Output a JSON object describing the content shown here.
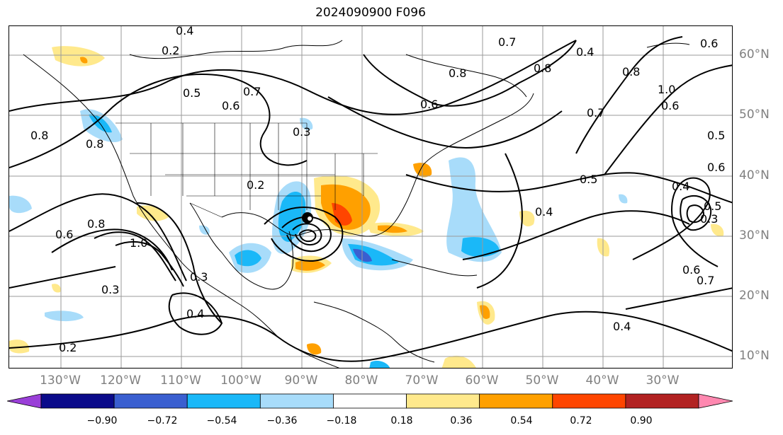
{
  "title": "2024090900 F096",
  "lon_labels": [
    "130°W",
    "120°W",
    "110°W",
    "100°W",
    "90°W",
    "80°W",
    "70°W",
    "60°W",
    "50°W",
    "40°W",
    "30°W"
  ],
  "lat_labels": [
    "60°N",
    "50°N",
    "40°N",
    "30°N",
    "20°N",
    "10°N"
  ],
  "colorbar": {
    "ticks": [
      "−0.90",
      "−0.72",
      "−0.54",
      "−0.36",
      "−0.18",
      "0.18",
      "0.36",
      "0.54",
      "0.72",
      "0.90"
    ],
    "colors": [
      "#9a3fd8",
      "#0a0a8a",
      "#3a5fd0",
      "#1ab8f8",
      "#a8dcfa",
      "#ffffff",
      "#ffe98c",
      "#ffa000",
      "#ff4500",
      "#b22222",
      "#ff88b0"
    ]
  },
  "contour_labels": [
    "0.2",
    "0.5",
    "0.6",
    "0.7",
    "0.7",
    "0.4",
    "0.8",
    "0.6",
    "0.8",
    "1.0",
    "0.6",
    "0.8",
    "0.7",
    "0.6",
    "0.5",
    "0.3",
    "0.8",
    "0.8",
    "0.4",
    "0.2",
    "0.5",
    "0.4",
    "0.6",
    "0.6",
    "0.8",
    "1.0",
    "0.3",
    "0.3",
    "0.4",
    "0.2",
    "0.4",
    "0.4",
    "0.5",
    "0.3",
    "0.6",
    "0.7"
  ],
  "colors": {
    "map_line": "#000000",
    "grid": "#9a9a9a",
    "tick_text": "#808080"
  }
}
